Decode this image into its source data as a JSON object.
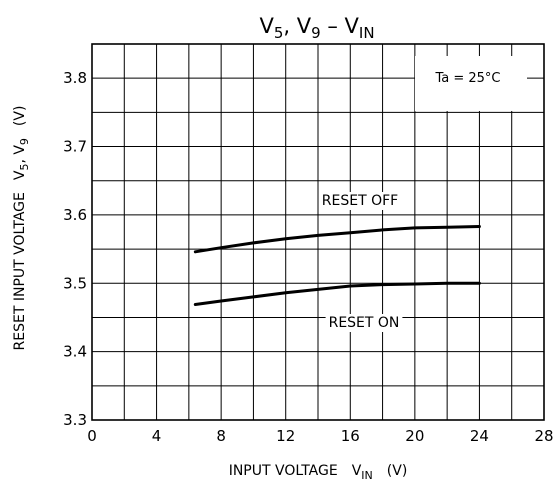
{
  "chart_data": {
    "type": "line",
    "title": {
      "a": "V",
      "a_sub": "5",
      "sep": ", ",
      "b": "V",
      "b_sub": "9",
      "dash": " – ",
      "c": "V",
      "c_sub": "IN"
    },
    "xlabel": {
      "text": "INPUT VOLTAGE",
      "sym": "V",
      "sym_sub": "IN",
      "unit": "(V)"
    },
    "ylabel": {
      "text": "RESET INPUT VOLTAGE",
      "sym1": "V",
      "sym1_sub": "5",
      "comma": ", ",
      "sym2": "V",
      "sym2_sub": "9",
      "unit": "(V)"
    },
    "xlim": [
      0,
      28
    ],
    "ylim": [
      3.3,
      3.85
    ],
    "x_ticks": [
      0,
      4,
      8,
      12,
      16,
      20,
      24,
      28
    ],
    "x_tick_labels": [
      "0",
      "4",
      "8",
      "12",
      "16",
      "20",
      "24",
      "28"
    ],
    "y_ticks": [
      3.3,
      3.4,
      3.5,
      3.6,
      3.7,
      3.8
    ],
    "y_tick_labels": [
      "3.3",
      "3.4",
      "3.5",
      "3.6",
      "3.7",
      "3.8"
    ],
    "grid": true,
    "annotation": "Ta = 25°C",
    "series": [
      {
        "name": "RESET OFF",
        "x": [
          6.4,
          8,
          10,
          12,
          14,
          16,
          18,
          20,
          22,
          24
        ],
        "y": [
          3.546,
          3.552,
          3.559,
          3.565,
          3.57,
          3.574,
          3.578,
          3.581,
          3.582,
          3.583
        ]
      },
      {
        "name": "RESET ON",
        "x": [
          6.4,
          8,
          10,
          12,
          14,
          16,
          18,
          20,
          22,
          24
        ],
        "y": [
          3.469,
          3.474,
          3.48,
          3.486,
          3.491,
          3.496,
          3.498,
          3.499,
          3.5,
          3.5
        ]
      }
    ]
  }
}
